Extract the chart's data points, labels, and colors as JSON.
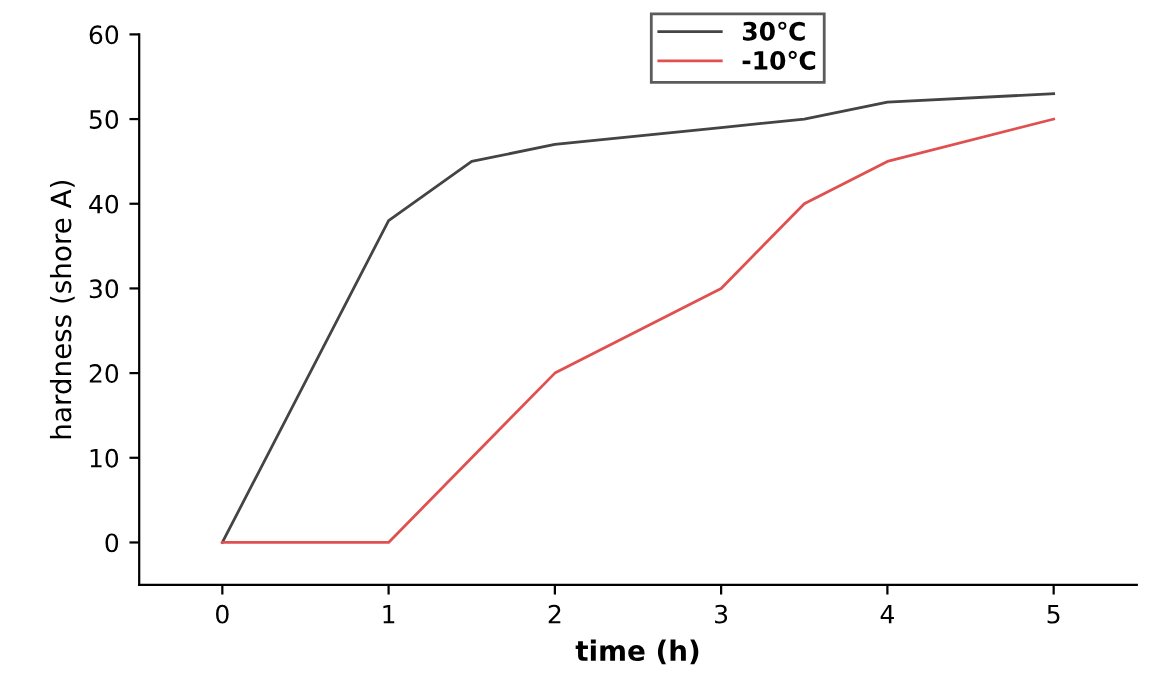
{
  "chart_data": {
    "type": "line",
    "xlabel": "time (h)",
    "ylabel": "hardness (shore A)",
    "x": [
      0,
      1,
      1.5,
      2,
      3,
      3.5,
      4,
      5
    ],
    "series": [
      {
        "name": "30℃",
        "color": "#444444",
        "values": [
          0,
          38,
          45,
          47,
          49,
          50,
          52,
          53
        ]
      },
      {
        "name": "-10℃",
        "color": "#e05050",
        "values": [
          0,
          0,
          10,
          20,
          30,
          40,
          45,
          50
        ]
      }
    ],
    "xlim": [
      -0.5,
      5.5
    ],
    "xticks": [
      0,
      1,
      2,
      3,
      4,
      5
    ],
    "ylim": [
      -5,
      60
    ],
    "yticks": [
      0,
      10,
      20,
      30,
      40,
      50,
      60
    ],
    "grid": false,
    "legend": "top",
    "marker": "none",
    "line_style": "solid"
  }
}
